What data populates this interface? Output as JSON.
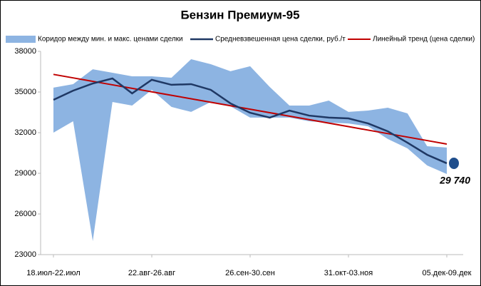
{
  "chart_data": {
    "type": "line",
    "title": "Бензин Премиум-95",
    "categories": [
      "18.июл-22.июл",
      null,
      null,
      null,
      null,
      "22.авг-26.авг",
      null,
      null,
      null,
      null,
      "26.сен-30.сен",
      null,
      null,
      null,
      null,
      "31.окт-03.ноя",
      null,
      null,
      null,
      null,
      "05.дек-09.дек"
    ],
    "ylim": [
      23000,
      38000
    ],
    "yticks": [
      23000,
      26000,
      29000,
      32000,
      35000,
      38000
    ],
    "grid": false,
    "band": {
      "name": "Коридор между мин. и макс. ценами сделки",
      "color": "#8db4e2",
      "high": [
        35320,
        35580,
        36680,
        36420,
        36160,
        36160,
        36050,
        37420,
        37050,
        36530,
        36900,
        35370,
        34000,
        34000,
        34370,
        33530,
        33630,
        33840,
        33420,
        31000,
        30900
      ],
      "low": [
        32000,
        32840,
        24000,
        34260,
        34000,
        35160,
        33900,
        33530,
        34260,
        33950,
        33110,
        33110,
        33110,
        32840,
        32740,
        32680,
        32470,
        31530,
        30840,
        29580,
        28950
      ]
    },
    "series": [
      {
        "name": "Средневзвешенная цена сделки, руб./т",
        "color": "#1f3864",
        "values": [
          34420,
          35100,
          35630,
          36000,
          34900,
          35900,
          35530,
          35580,
          35160,
          34160,
          33470,
          33110,
          33630,
          33260,
          33110,
          33050,
          32680,
          32100,
          31260,
          30370,
          29740
        ],
        "value_labels": [
          null,
          null,
          null,
          null,
          null,
          null,
          null,
          null,
          null,
          null,
          null,
          null,
          null,
          null,
          null,
          null,
          null,
          null,
          null,
          null,
          "29 740"
        ]
      },
      {
        "name": "Линейный тренд (цена сделки)",
        "color": "#c00000",
        "values": [
          36300,
          36043,
          35786,
          35529,
          35272,
          35015,
          34758,
          34501,
          34244,
          33987,
          33730,
          33473,
          33216,
          32959,
          32702,
          32445,
          32188,
          31931,
          31674,
          31417,
          31160
        ]
      }
    ]
  }
}
